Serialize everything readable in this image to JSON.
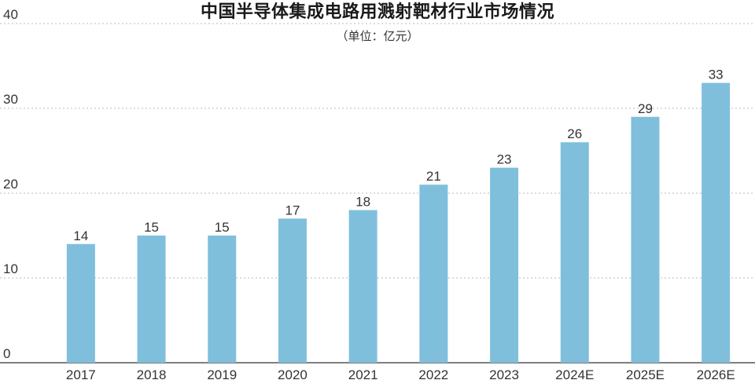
{
  "chart_data": {
    "type": "bar",
    "title": "中国半导体集成电路用溅射靶材行业市场情况",
    "subtitle": "（单位：亿元）",
    "xlabel": "",
    "ylabel": "",
    "categories": [
      "2017",
      "2018",
      "2019",
      "2020",
      "2021",
      "2022",
      "2023",
      "2024E",
      "2025E",
      "2026E"
    ],
    "values": [
      14,
      15,
      15,
      17,
      18,
      21,
      23,
      26,
      29,
      33
    ],
    "value_labels": [
      "14",
      "15",
      "15",
      "17",
      "18",
      "21",
      "23",
      "26",
      "29",
      "33"
    ],
    "ylim": [
      0,
      40
    ],
    "yticks": [
      0,
      10,
      20,
      30,
      40
    ],
    "ytick_labels": [
      "0",
      "10",
      "20",
      "30",
      "40"
    ],
    "grid": true,
    "legend": "none",
    "bar_color": "#7fbfdc",
    "grid_color": "#b8b8b8"
  }
}
